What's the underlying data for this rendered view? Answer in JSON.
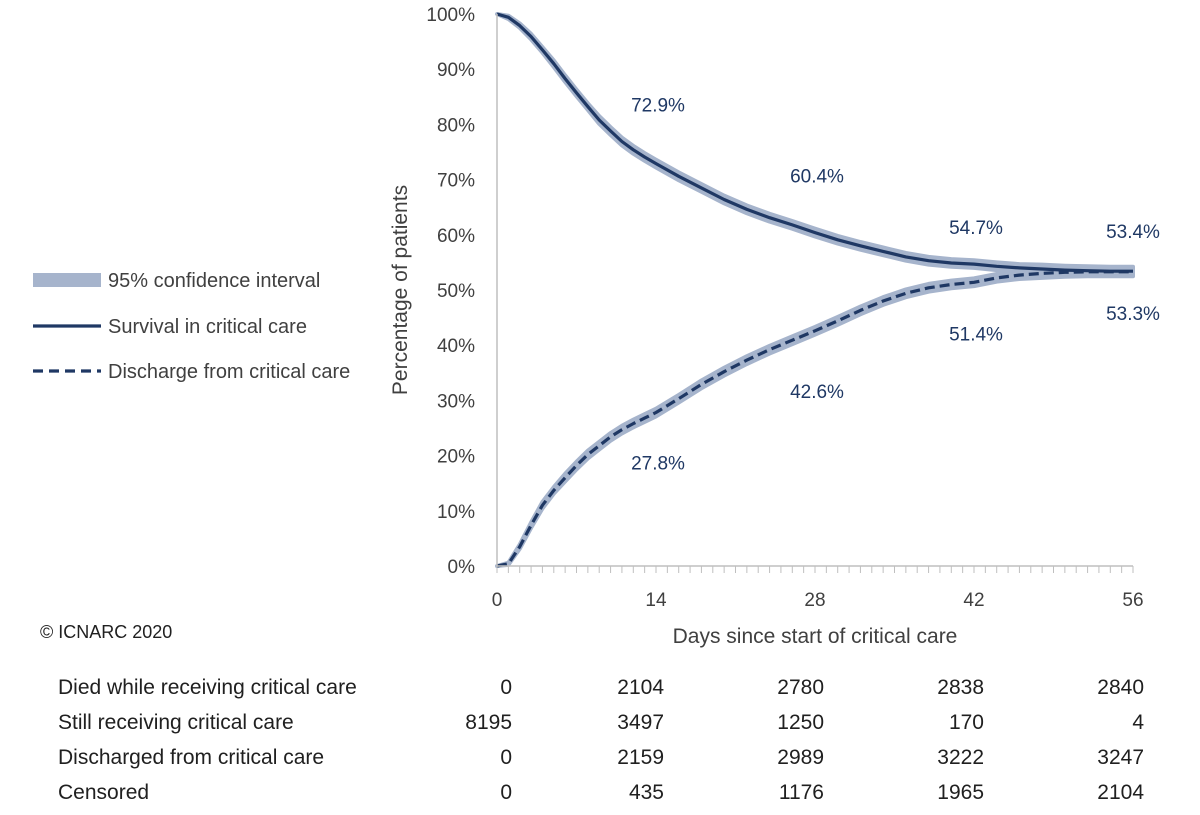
{
  "copyright": "© ICNARC 2020",
  "chart_data": {
    "type": "line",
    "title": "",
    "xlabel": "Days since start of critical care",
    "ylabel": "Percentage of patients",
    "xlim": [
      0,
      56
    ],
    "ylim": [
      0,
      100
    ],
    "x_ticks": [
      "0",
      "14",
      "28",
      "42",
      "56"
    ],
    "y_ticks": [
      "0%",
      "10%",
      "20%",
      "30%",
      "40%",
      "50%",
      "60%",
      "70%",
      "80%",
      "90%",
      "100%"
    ],
    "grid": false,
    "legend_position": "left",
    "legend": [
      {
        "label": "95% confidence interval",
        "style": "band",
        "color": "#a6b4cc"
      },
      {
        "label": "Survival in critical care",
        "style": "solid",
        "color": "#1f3864"
      },
      {
        "label": "Discharge from critical care",
        "style": "dashed",
        "color": "#1f3864"
      }
    ],
    "series": [
      {
        "name": "Survival in critical care",
        "style": "solid",
        "x": [
          0,
          1,
          2,
          3,
          4,
          5,
          6,
          7,
          8,
          9,
          10,
          11,
          12,
          13,
          14,
          16,
          18,
          20,
          22,
          24,
          26,
          28,
          30,
          32,
          34,
          36,
          38,
          40,
          42,
          44,
          46,
          48,
          50,
          52,
          54,
          56
        ],
        "y": [
          100,
          99.4,
          97.9,
          95.9,
          93.5,
          91,
          88.3,
          85.7,
          83.2,
          80.8,
          78.8,
          76.9,
          75.4,
          74.1,
          72.9,
          70.6,
          68.5,
          66.4,
          64.6,
          63.1,
          61.8,
          60.4,
          59.1,
          58,
          57,
          56,
          55.3,
          54.9,
          54.7,
          54.3,
          54,
          53.8,
          53.6,
          53.5,
          53.4,
          53.4
        ],
        "ci_halfwidth": [
          0,
          0.3,
          0.4,
          0.5,
          0.5,
          0.6,
          0.6,
          0.6,
          0.6,
          0.7,
          0.7,
          0.7,
          0.7,
          0.7,
          0.7,
          0.7,
          0.7,
          0.7,
          0.7,
          0.7,
          0.7,
          0.7,
          0.7,
          0.7,
          0.7,
          0.7,
          0.7,
          0.7,
          0.7,
          0.7,
          0.7,
          0.8,
          0.8,
          0.8,
          0.8,
          0.8
        ]
      },
      {
        "name": "Discharge from critical care",
        "style": "dashed",
        "x": [
          0,
          1,
          2,
          3,
          4,
          5,
          6,
          7,
          8,
          9,
          10,
          11,
          12,
          13,
          14,
          16,
          18,
          20,
          22,
          24,
          26,
          28,
          30,
          32,
          34,
          36,
          38,
          40,
          42,
          44,
          46,
          48,
          50,
          52,
          54,
          56
        ],
        "y": [
          0,
          0.4,
          3.5,
          7.4,
          11,
          13.7,
          16,
          18.2,
          20.2,
          21.8,
          23.4,
          24.7,
          25.8,
          26.8,
          27.8,
          30.3,
          32.9,
          35.2,
          37.3,
          39.2,
          40.9,
          42.6,
          44.4,
          46.3,
          48,
          49.4,
          50.4,
          51,
          51.4,
          52.2,
          52.7,
          53,
          53.2,
          53.3,
          53.3,
          53.3
        ],
        "ci_halfwidth": [
          0,
          0.2,
          0.4,
          0.5,
          0.6,
          0.6,
          0.7,
          0.7,
          0.7,
          0.7,
          0.7,
          0.7,
          0.7,
          0.7,
          0.7,
          0.7,
          0.7,
          0.7,
          0.7,
          0.7,
          0.7,
          0.7,
          0.7,
          0.7,
          0.7,
          0.7,
          0.7,
          0.7,
          0.7,
          0.7,
          0.7,
          0.8,
          0.8,
          0.8,
          0.8,
          0.8
        ]
      }
    ],
    "annotations": [
      {
        "text": "72.9%",
        "series": "Survival in critical care",
        "x": 14,
        "y": 72.9
      },
      {
        "text": "60.4%",
        "series": "Survival in critical care",
        "x": 28,
        "y": 60.4
      },
      {
        "text": "54.7%",
        "series": "Survival in critical care",
        "x": 42,
        "y": 54.7
      },
      {
        "text": "53.4%",
        "series": "Survival in critical care",
        "x": 56,
        "y": 53.4
      },
      {
        "text": "27.8%",
        "series": "Discharge from critical care",
        "x": 14,
        "y": 27.8
      },
      {
        "text": "42.6%",
        "series": "Discharge from critical care",
        "x": 28,
        "y": 42.6
      },
      {
        "text": "51.4%",
        "series": "Discharge from critical care",
        "x": 42,
        "y": 51.4
      },
      {
        "text": "53.3%",
        "series": "Discharge from critical care",
        "x": 56,
        "y": 53.3
      }
    ]
  },
  "risk_table": {
    "rows": [
      {
        "label": "Died while receiving critical care",
        "values": [
          "0",
          "2104",
          "2780",
          "2838",
          "2840"
        ]
      },
      {
        "label": "Still receiving critical care",
        "values": [
          "8195",
          "3497",
          "1250",
          "170",
          "4"
        ]
      },
      {
        "label": "Discharged from critical care",
        "values": [
          "0",
          "2159",
          "2989",
          "3222",
          "3247"
        ]
      },
      {
        "label": "Censored",
        "values": [
          "0",
          "435",
          "1176",
          "1965",
          "2104"
        ]
      }
    ]
  }
}
